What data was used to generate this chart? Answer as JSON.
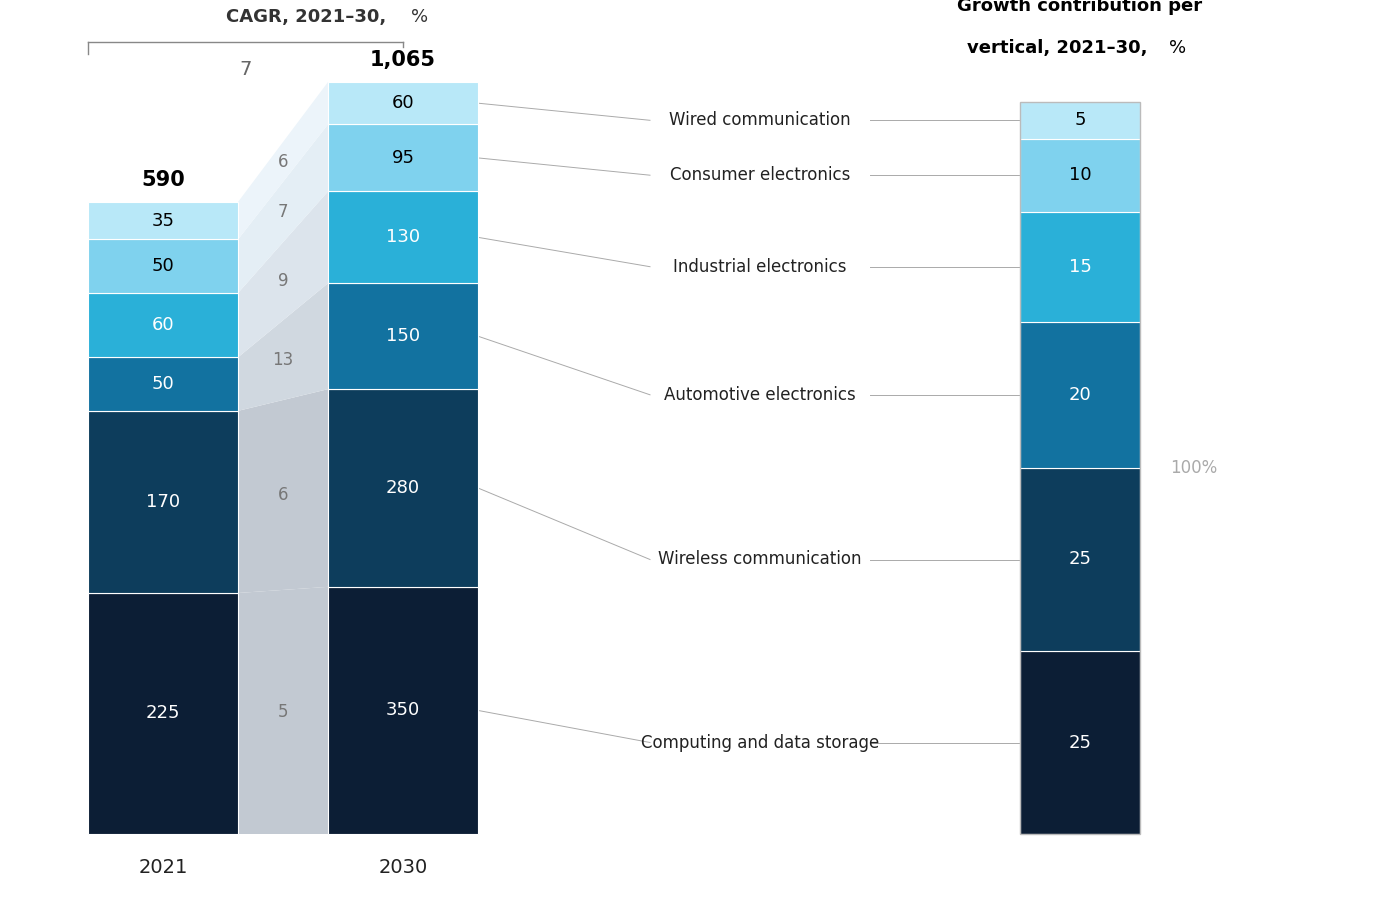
{
  "categories_2021": [
    225,
    170,
    50,
    60,
    50,
    35
  ],
  "categories_2030": [
    350,
    280,
    150,
    130,
    95,
    60
  ],
  "categories_pct": [
    25,
    25,
    20,
    15,
    10,
    5
  ],
  "cagr_values": [
    5,
    6,
    13,
    9,
    7,
    6
  ],
  "labels": [
    "Computing and data storage",
    "Wireless communication",
    "Automotive electronics",
    "Industrial electronics",
    "Consumer electronics",
    "Wired communication"
  ],
  "colors": [
    "#0c1e35",
    "#0d3d5c",
    "#1272a0",
    "#2ab0d8",
    "#7fd2ee",
    "#b8e8f8"
  ],
  "shadow_colors_light": [
    "#d0d5dc",
    "#c8d0d8",
    "#c0ccd6",
    "#b8c8d4",
    "#b0c4d2",
    "#a8c0d0"
  ],
  "total_2021": 590,
  "total_2030": 1065,
  "cagr_title_bold": "CAGR, 2021–30,",
  "cagr_title_normal": " %",
  "right_title_bold": "vertical, 2021–30,",
  "right_title_normal": " %",
  "overall_cagr": "7",
  "pct_label": "100%"
}
